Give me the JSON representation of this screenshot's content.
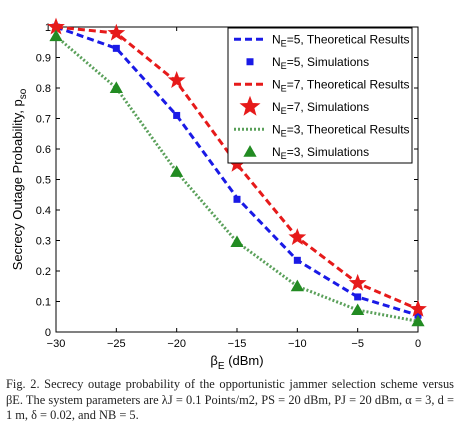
{
  "chart_data": {
    "type": "line",
    "xlabel_symbol": "β",
    "xlabel_sub": "E",
    "xlabel_unit": " (dBm)",
    "ylabel": "Secrecy Outage Probability, p",
    "ylabel_sub": "so",
    "xlim": [
      -30,
      0
    ],
    "ylim": [
      0,
      1
    ],
    "xticks": [
      -30,
      -25,
      -20,
      -15,
      -10,
      -5,
      0
    ],
    "xtick_labels": [
      "−30",
      "−25",
      "−20",
      "−15",
      "−10",
      "−5",
      "0"
    ],
    "yticks": [
      0,
      0.1,
      0.2,
      0.3,
      0.4,
      0.5,
      0.6,
      0.7,
      0.8,
      0.9,
      1
    ],
    "ytick_labels": [
      "0",
      "0.1",
      "0.2",
      "0.3",
      "0.4",
      "0.5",
      "0.6",
      "0.7",
      "0.8",
      "0.9",
      "1"
    ],
    "grid": false,
    "legend_position": "top-right",
    "x": [
      -30,
      -25,
      -20,
      -15,
      -10,
      -5,
      0
    ],
    "series": [
      {
        "name_pre": "N",
        "name_sub": "E",
        "name_post": "=5, Theoretical Results",
        "style": "dashed",
        "color": "#1a1ae6",
        "values": [
          1.0,
          0.93,
          0.71,
          0.44,
          0.235,
          0.115,
          0.055
        ]
      },
      {
        "name_pre": "N",
        "name_sub": "E",
        "name_post": "=5, Simulations",
        "style": "marker",
        "marker": "square",
        "color": "#1a1ae6",
        "values": [
          1.0,
          0.93,
          0.71,
          0.435,
          0.235,
          0.115,
          0.055
        ]
      },
      {
        "name_pre": "N",
        "name_sub": "E",
        "name_post": "=7, Theoretical Results",
        "style": "dashed",
        "color": "#e61a1a",
        "values": [
          1.0,
          0.98,
          0.82,
          0.55,
          0.31,
          0.16,
          0.075
        ]
      },
      {
        "name_pre": "N",
        "name_sub": "E",
        "name_post": "=7, Simulations",
        "style": "marker",
        "marker": "star",
        "color": "#e61a1a",
        "values": [
          1.0,
          0.98,
          0.825,
          0.55,
          0.31,
          0.16,
          0.075
        ]
      },
      {
        "name_pre": "N",
        "name_sub": "E",
        "name_post": "=3, Theoretical Results",
        "style": "dotted",
        "color": "#5aa05a",
        "values": [
          0.97,
          0.8,
          0.525,
          0.295,
          0.15,
          0.072,
          0.035
        ]
      },
      {
        "name_pre": "N",
        "name_sub": "E",
        "name_post": "=3, Simulations",
        "style": "marker",
        "marker": "triangle",
        "color": "#228b22",
        "values": [
          0.97,
          0.8,
          0.525,
          0.295,
          0.15,
          0.072,
          0.035
        ]
      }
    ]
  },
  "caption": "Fig. 2.  Secrecy outage probability of the opportunistic jammer selection scheme versus βE. The system parameters are λJ = 0.1 Points/m2, PS = 20 dBm, PJ = 20 dBm, α = 3, d = 1 m, δ = 0.02, and NB = 5."
}
